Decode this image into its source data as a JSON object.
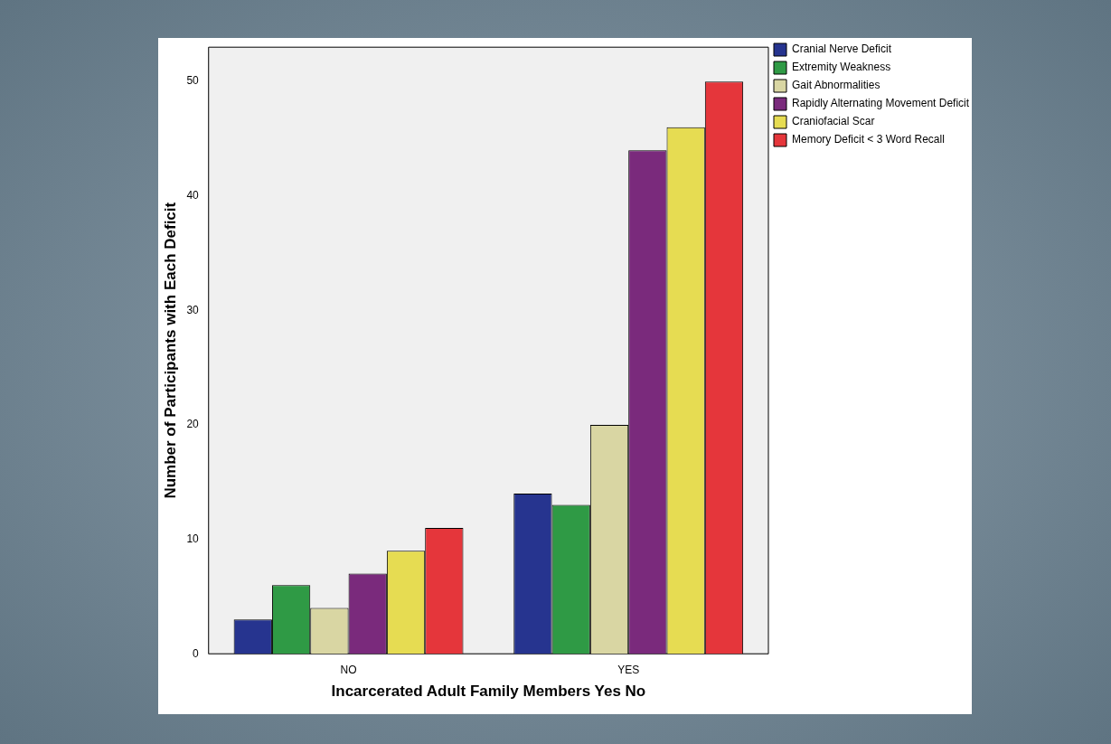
{
  "chart_data": {
    "type": "bar",
    "xlabel": "Incarcerated Adult Family Members Yes No",
    "ylabel": "Number of Participants with Each Deficit",
    "categories": [
      "NO",
      "YES"
    ],
    "series": [
      {
        "name": "Cranial Nerve Deficit",
        "color": "#26348f",
        "values": [
          3,
          14
        ]
      },
      {
        "name": "Extremity Weakness",
        "color": "#2f9a45",
        "values": [
          6,
          13
        ]
      },
      {
        "name": "Gait Abnormalities",
        "color": "#d9d6a3",
        "values": [
          4,
          20
        ]
      },
      {
        "name": "Rapidly Alternating Movement Deficit",
        "color": "#7a2a7c",
        "values": [
          7,
          44
        ]
      },
      {
        "name": "Craniofacial Scar",
        "color": "#e6dc52",
        "values": [
          9,
          46
        ]
      },
      {
        "name": "Memory Deficit < 3 Word Recall",
        "color": "#e5363b",
        "values": [
          11,
          50
        ]
      }
    ],
    "ylim": [
      0,
      53
    ],
    "yticks": [
      0,
      10,
      20,
      30,
      40,
      50
    ],
    "grid": false,
    "legend": "top right"
  }
}
